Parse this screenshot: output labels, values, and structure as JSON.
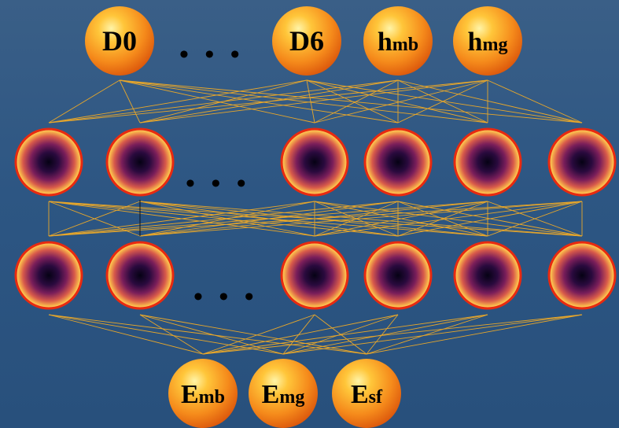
{
  "outputs": [
    {
      "main": "D0",
      "sub": ""
    },
    {
      "main": "D6",
      "sub": ""
    },
    {
      "main": "h",
      "sub": "mb"
    },
    {
      "main": "h",
      "sub": "mg"
    }
  ],
  "inputs": [
    {
      "main": "E",
      "sub": "mb"
    },
    {
      "main": "E",
      "sub": "mg"
    },
    {
      "main": "E",
      "sub": "sf"
    }
  ],
  "ellipsis": "• • •",
  "hidden_layers": [
    {
      "nodes_left": 2,
      "nodes_right": 4
    },
    {
      "nodes_left": 2,
      "nodes_right": 4
    }
  ],
  "colors": {
    "background": "#2d5683",
    "connection": "#e8a72a",
    "io_node_light": "#ffe066",
    "io_node_dark": "#e85f0c",
    "hidden_rim": "#e82a10",
    "hidden_center": "#0a0420"
  }
}
